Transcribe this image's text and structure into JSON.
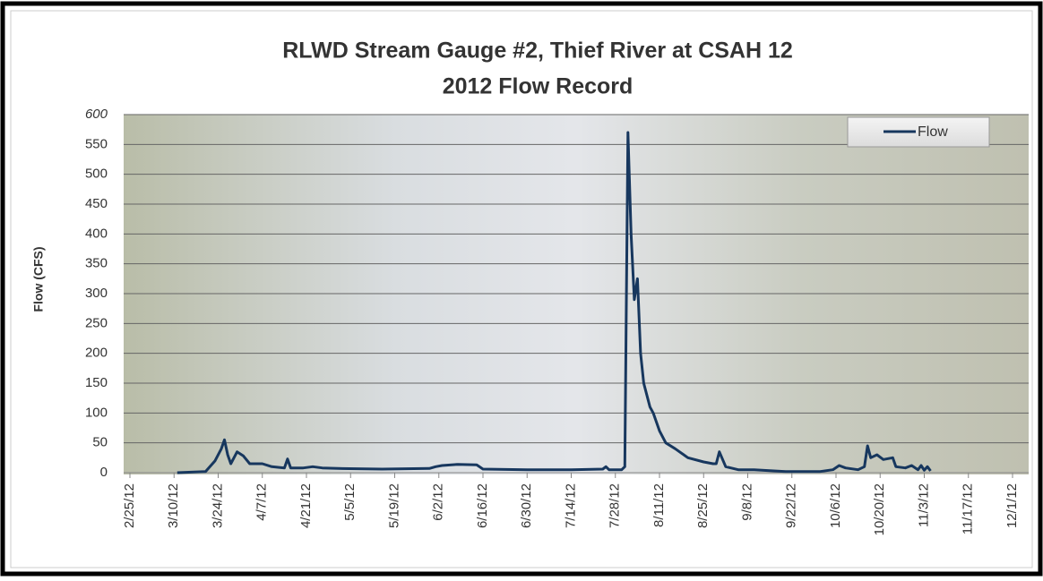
{
  "chart_data": {
    "type": "line",
    "title": "RLWD Stream Gauge #2, Thief River at CSAH 12",
    "subtitle": "2012 Flow Record",
    "y_label": "Flow (CFS)",
    "x": [
      "3/11/12",
      "3/20/12",
      "3/23/12",
      "3/25/12",
      "3/26/12",
      "3/27/12",
      "3/28/12",
      "3/30/12",
      "4/1/12",
      "4/3/12",
      "4/7/12",
      "4/10/12",
      "4/14/12",
      "4/15/12",
      "4/16/12",
      "4/20/12",
      "4/23/12",
      "4/26/12",
      "5/1/12",
      "5/15/12",
      "5/30/12",
      "6/1/12",
      "6/3/12",
      "6/8/12",
      "6/14/12",
      "6/16/12",
      "6/30/12",
      "7/14/12",
      "7/24/12",
      "7/25/12",
      "7/26/12",
      "7/30/12",
      "7/31/12",
      "8/1/12",
      "8/2/12",
      "8/3/12",
      "8/4/12",
      "8/5/12",
      "8/6/12",
      "8/8/12",
      "8/9/12",
      "8/11/12",
      "8/13/12",
      "8/16/12",
      "8/20/12",
      "8/25/12",
      "8/28/12",
      "8/29/12",
      "8/30/12",
      "9/1/12",
      "9/5/12",
      "9/10/12",
      "9/20/12",
      "10/1/12",
      "10/5/12",
      "10/7/12",
      "10/9/12",
      "10/13/12",
      "10/15/12",
      "10/16/12",
      "10/17/12",
      "10/19/12",
      "10/21/12",
      "10/24/12",
      "10/25/12",
      "10/28/12",
      "10/30/12",
      "11/1/12",
      "11/2/12",
      "11/3/12",
      "11/4/12",
      "11/5/12"
    ],
    "series": [
      {
        "name": "Flow",
        "color": "#17375e",
        "values": [
          0,
          2,
          20,
          40,
          55,
          30,
          15,
          35,
          28,
          15,
          15,
          10,
          8,
          23,
          8,
          8,
          10,
          8,
          7,
          6,
          7,
          10,
          12,
          14,
          13,
          6,
          5,
          5,
          6,
          10,
          5,
          5,
          10,
          570,
          400,
          290,
          325,
          200,
          150,
          110,
          100,
          70,
          50,
          40,
          25,
          18,
          15,
          15,
          35,
          10,
          5,
          5,
          2,
          2,
          5,
          12,
          8,
          5,
          10,
          45,
          25,
          30,
          22,
          25,
          10,
          8,
          12,
          5,
          12,
          4,
          10,
          3
        ]
      }
    ],
    "xlim": [
      "2/25/12",
      "12/1/12"
    ],
    "xticks": [
      "2/25/12",
      "3/10/12",
      "3/24/12",
      "4/7/12",
      "4/21/12",
      "5/5/12",
      "5/19/12",
      "6/2/12",
      "6/16/12",
      "6/30/12",
      "7/14/12",
      "7/28/12",
      "8/11/12",
      "8/25/12",
      "9/8/12",
      "9/22/12",
      "10/6/12",
      "10/20/12",
      "11/3/12",
      "11/17/12",
      "12/1/12"
    ],
    "ylim": [
      0,
      600
    ],
    "yticks": [
      0,
      50,
      100,
      150,
      200,
      250,
      300,
      350,
      400,
      450,
      500,
      550,
      600
    ],
    "grid": true,
    "legend": "top-right"
  }
}
